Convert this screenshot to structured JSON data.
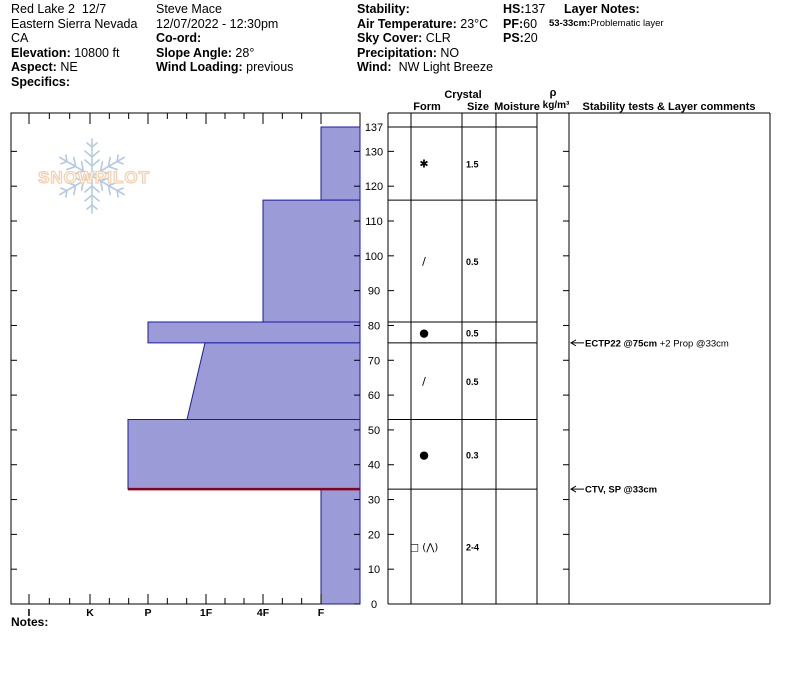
{
  "header": {
    "col1": {
      "site": "Red Lake 2",
      "date_short": "12/7",
      "region": "Eastern Sierra Nevada",
      "state": "CA",
      "elevation_label": "Elevation:",
      "elevation": "10800 ft",
      "aspect_label": "Aspect:",
      "aspect": "NE",
      "specifics_label": "Specifics:"
    },
    "col2": {
      "observer": "Steve Mace",
      "datetime": "12/07/2022 - 12:30pm",
      "coord_label": "Co-ord:",
      "slope_label": "Slope Angle:",
      "slope": "28°",
      "wind_loading_label": "Wind Loading:",
      "wind_loading": "previous"
    },
    "col3": {
      "stability_label": "Stability:",
      "air_temp_label": "Air Temperature:",
      "air_temp": "23°C",
      "sky_label": "Sky Cover:",
      "sky": "CLR",
      "precip_label": "Precipitation:",
      "precip": "NO",
      "wind_label": "Wind:",
      "wind": "NW Light Breeze"
    },
    "col4": {
      "hs_label": "HS:",
      "hs": "137",
      "pf_label": "PF:",
      "pf": "60",
      "ps_label": "PS:",
      "ps": "20"
    },
    "layer_notes": {
      "title": "Layer Notes:",
      "note_range": "53-33cm:",
      "note_text": "Problematic layer"
    }
  },
  "watermark": {
    "text": "SNOWPILOT",
    "color": "#f2c9a4"
  },
  "columns": {
    "crystal": "Crystal",
    "form": "Form",
    "size": "Size",
    "moisture": "Moisture",
    "rho": "ρ",
    "density_unit": "kg/m³",
    "stability": "Stability tests & Layer comments"
  },
  "notes_label": "Notes:",
  "colors": {
    "layer_fill": "#9b9bd8",
    "layer_stroke": "#1a1aa8",
    "weak_layer": "#8b0019"
  },
  "chart_data": {
    "type": "snow_profile",
    "height_axis": {
      "unit": "cm",
      "min": 0,
      "max": 137,
      "ticks": [
        0,
        10,
        20,
        30,
        40,
        50,
        60,
        70,
        80,
        90,
        100,
        110,
        120,
        130,
        137
      ]
    },
    "hardness_axis": {
      "categories": [
        "I",
        "K",
        "P",
        "1F",
        "4F",
        "F"
      ]
    },
    "hardness_profile": [
      {
        "top": 137,
        "bottom": 116,
        "hardness_top": "F",
        "hardness_bottom": "F"
      },
      {
        "top": 116,
        "bottom": 81,
        "hardness_top": "4F",
        "hardness_bottom": "4F"
      },
      {
        "top": 81,
        "bottom": 75,
        "hardness_top": "P",
        "hardness_bottom": "P"
      },
      {
        "top": 75,
        "bottom": 53,
        "hardness_top": "P+",
        "hardness_bottom": "1F-"
      },
      {
        "top": 53,
        "bottom": 33,
        "hardness_top": "P-",
        "hardness_bottom": "P-"
      },
      {
        "top": 33,
        "bottom": 0,
        "hardness_top": "F",
        "hardness_bottom": "F"
      }
    ],
    "layers": [
      {
        "top": 137,
        "bottom": 116,
        "form_symbol": "✱",
        "size": "1.5"
      },
      {
        "top": 116,
        "bottom": 81,
        "form_symbol": "/",
        "size": "0.5"
      },
      {
        "top": 81,
        "bottom": 75,
        "form_symbol": "●",
        "size": "0.5"
      },
      {
        "top": 75,
        "bottom": 53,
        "form_symbol": "/",
        "size": "0.5"
      },
      {
        "top": 53,
        "bottom": 33,
        "form_symbol": "●",
        "size": "0.3"
      },
      {
        "top": 33,
        "bottom": 0,
        "form_symbol": "□ (⋀)",
        "size": "2-4"
      }
    ],
    "weak_layer_depth": 33,
    "stability_tests": [
      {
        "height": 75,
        "label_bold": "ECTP22 @75cm",
        "label_rest": " +2 Prop @33cm"
      },
      {
        "height": 33,
        "label_bold": "CTV, SP @33cm",
        "label_rest": ""
      }
    ]
  }
}
